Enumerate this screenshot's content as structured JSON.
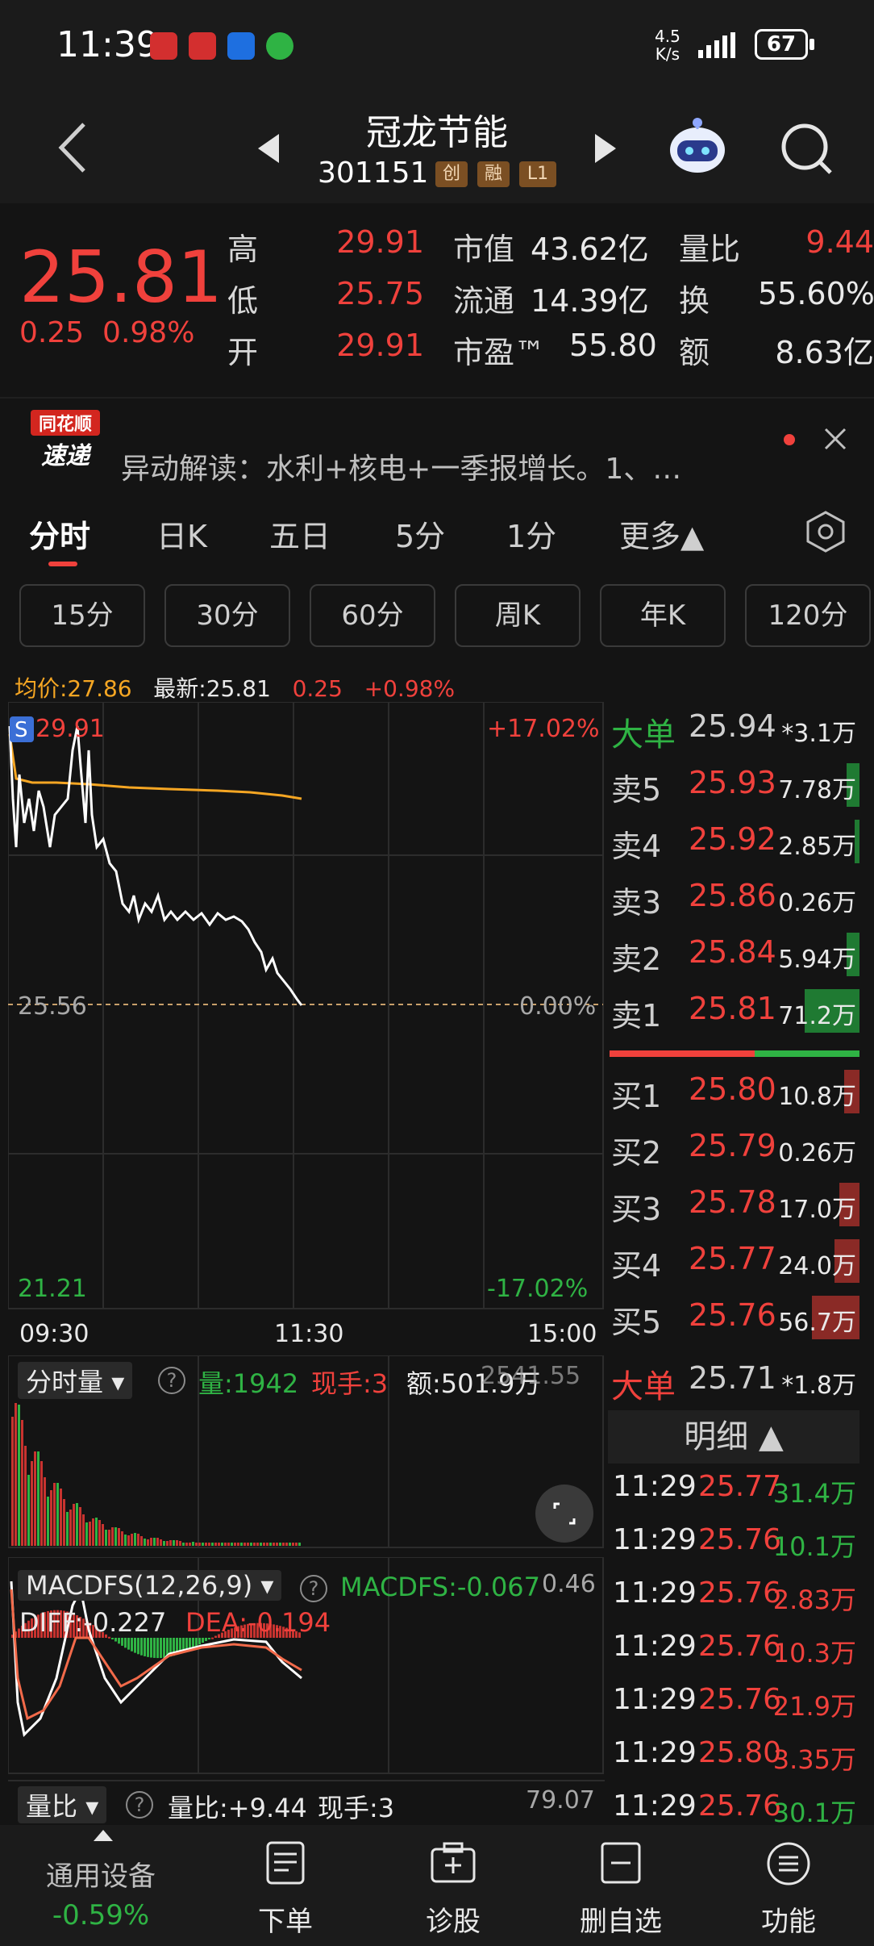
{
  "status": {
    "time": "11:39",
    "net_speed_top": "4.5",
    "net_speed_bottom": "K/s",
    "battery": "67"
  },
  "header": {
    "title": "冠龙节能",
    "code": "301151",
    "badges": [
      "创",
      "融",
      "L1"
    ]
  },
  "quote": {
    "price": "25.81",
    "change": "0.25",
    "change_pct": "0.98%",
    "high_label": "高",
    "high": "29.91",
    "low_label": "低",
    "low": "25.75",
    "open_label": "开",
    "open": "29.91",
    "mktcap_label": "市值",
    "mktcap": "43.62亿",
    "float_label": "流通",
    "float": "14.39亿",
    "pe_label": "市盈™",
    "pe": "55.80",
    "vol_ratio_label": "量比",
    "vol_ratio": "9.44",
    "turnover_label": "换",
    "turnover": "55.60%",
    "amount_label": "额",
    "amount": "8.63亿"
  },
  "news": {
    "logo_top": "同花顺",
    "logo_bottom": "速递",
    "text": "异动解读：水利+核电+一季报增长。1、…"
  },
  "tabs": [
    "分时",
    "日K",
    "五日",
    "5分",
    "1分",
    "更多▲"
  ],
  "periods": [
    "15分",
    "30分",
    "60分",
    "周K",
    "年K",
    "120分"
  ],
  "info_line": {
    "avg": "均价:27.86",
    "latest": "最新:25.81",
    "chg": "0.25",
    "chg_pct": "+0.98%"
  },
  "chart": {
    "top_left": "29.91",
    "top_right": "+17.02%",
    "mid_left": "25.56",
    "mid_right": "0.00%",
    "bot_left": "21.21",
    "bot_right": "-17.02%",
    "x_labels": [
      "09:30",
      "11:30",
      "15:00"
    ],
    "marker": "S",
    "colors": {
      "price_line": "#ffffff",
      "avg_line": "#f5a623",
      "up": "#f0413c",
      "down": "#2fb344"
    }
  },
  "volume": {
    "selector": "分时量",
    "vol": "量:1942",
    "hand": "现手:3",
    "amount": "额:501.9万",
    "right_val": "2541.55"
  },
  "macd": {
    "selector": "MACDFS(12,26,9)",
    "macdfs": "MACDFS:-0.067",
    "right_val": "0.46",
    "diff": "DIFF:-0.227",
    "dea": "DEA:-0.194"
  },
  "ratio": {
    "selector": "量比",
    "ratio": "量比:+9.44",
    "hand": "现手:3",
    "right_val": "79.07"
  },
  "orderbook": {
    "big_sell": {
      "label": "大单",
      "price": "25.94",
      "vol": "*3.1万"
    },
    "asks": [
      {
        "label": "卖5",
        "price": "25.93",
        "vol": "7.78万"
      },
      {
        "label": "卖4",
        "price": "25.92",
        "vol": "2.85万"
      },
      {
        "label": "卖3",
        "price": "25.86",
        "vol": "0.26万"
      },
      {
        "label": "卖2",
        "price": "25.84",
        "vol": "5.94万"
      },
      {
        "label": "卖1",
        "price": "25.81",
        "vol": "71.2万"
      }
    ],
    "bids": [
      {
        "label": "买1",
        "price": "25.80",
        "vol": "10.8万"
      },
      {
        "label": "买2",
        "price": "25.79",
        "vol": "0.26万"
      },
      {
        "label": "买3",
        "price": "25.78",
        "vol": "17.0万"
      },
      {
        "label": "买4",
        "price": "25.77",
        "vol": "24.0万"
      },
      {
        "label": "买5",
        "price": "25.76",
        "vol": "56.7万"
      }
    ],
    "big_buy": {
      "label": "大单",
      "price": "25.71",
      "vol": "*1.8万"
    }
  },
  "detail": {
    "header": "明细 ▲",
    "rows": [
      {
        "time": "11:29",
        "price": "25.77",
        "vol": "31.4万",
        "dir": "green"
      },
      {
        "time": "11:29",
        "price": "25.76",
        "vol": "10.1万",
        "dir": "green"
      },
      {
        "time": "11:29",
        "price": "25.76",
        "vol": "2.83万",
        "dir": "red"
      },
      {
        "time": "11:29",
        "price": "25.76",
        "vol": "10.3万",
        "dir": "red"
      },
      {
        "time": "11:29",
        "price": "25.76",
        "vol": "21.9万",
        "dir": "red"
      },
      {
        "time": "11:29",
        "price": "25.80",
        "vol": "3.35万",
        "dir": "red"
      },
      {
        "time": "11:29",
        "price": "25.76",
        "vol": "30.1万",
        "dir": "green"
      }
    ]
  },
  "bottom_nav": {
    "sector": "通用设备",
    "sector_chg": "-0.59%",
    "items": [
      "下单",
      "诊股",
      "删自选",
      "功能"
    ]
  }
}
